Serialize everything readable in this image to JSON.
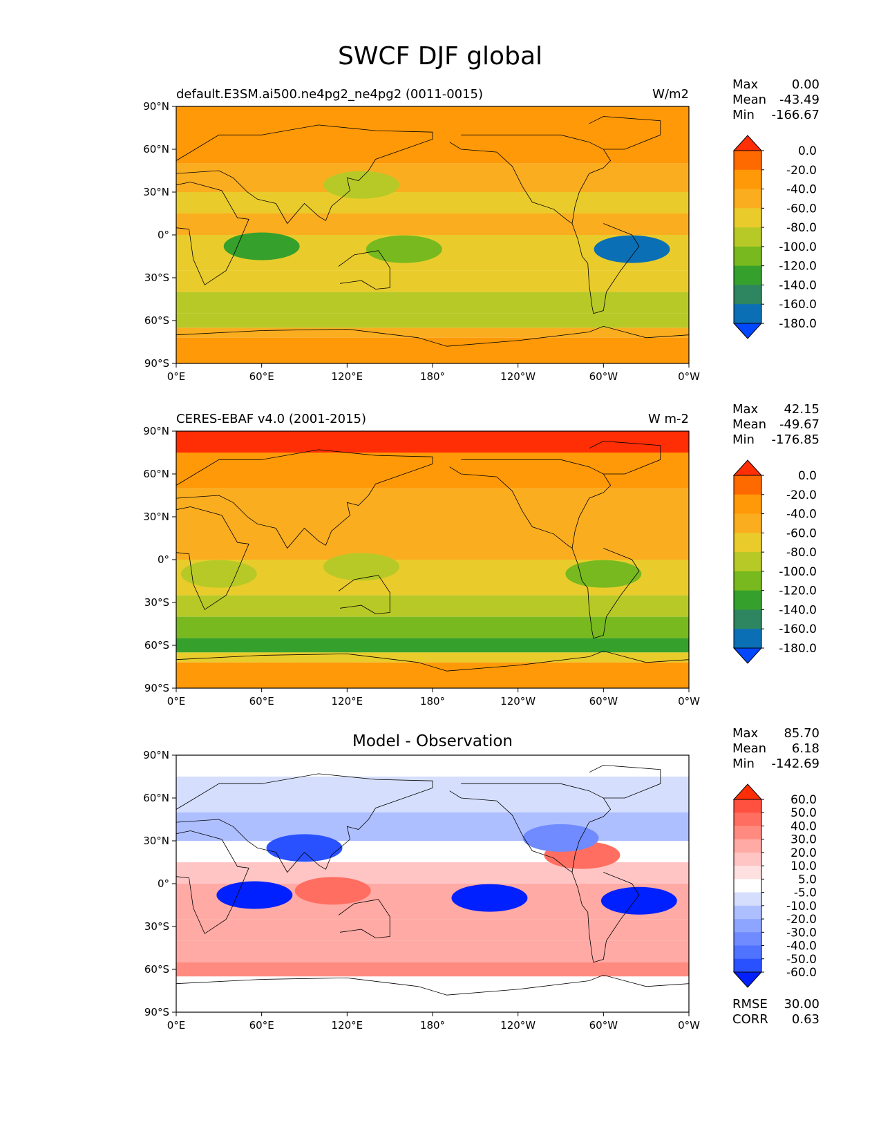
{
  "figure": {
    "title": "SWCF DJF global"
  },
  "colors": {
    "abs_levels": [
      "#0047ff",
      "#0a6fb5",
      "#2e8660",
      "#36a02c",
      "#77b91f",
      "#b7c926",
      "#e9cc2b",
      "#fbad20",
      "#ff9908",
      "#ff6a00",
      "#ff2e05"
    ],
    "diff_levels": [
      "#0020ff",
      "#2951ff",
      "#4f72ff",
      "#6f8bff",
      "#8ea5ff",
      "#aebfff",
      "#d5defc",
      "#ffffff",
      "#ffe0e0",
      "#ffc5c5",
      "#ffaaa5",
      "#ff8b80",
      "#ff6e60",
      "#ff5040",
      "#ff2e05"
    ],
    "land": "#000000"
  },
  "chart_data": [
    {
      "type": "heatmap",
      "panel": "model",
      "title": "default.E3SM.ai500.ne4pg2_ne4pg2 (0011-0015)",
      "units": "W/m2",
      "stats": [
        {
          "label": "Max",
          "value": "0.00"
        },
        {
          "label": "Mean",
          "value": "-43.49"
        },
        {
          "label": "Min",
          "value": "-166.67"
        }
      ],
      "colorbar": {
        "levels": [
          "0.0",
          "-20.0",
          "-40.0",
          "-60.0",
          "-80.0",
          "-100.0",
          "-120.0",
          "-140.0",
          "-160.0",
          "-180.0"
        ]
      },
      "x_ticks": [
        "0°E",
        "60°E",
        "120°E",
        "180°",
        "120°W",
        "60°W",
        "0°W"
      ],
      "y_ticks": [
        "90°N",
        "60°N",
        "30°N",
        "0°",
        "30°S",
        "60°S",
        "90°S"
      ],
      "xlim": [
        0,
        360
      ],
      "ylim": [
        -90,
        90
      ],
      "zones": [
        {
          "lat": [
            75,
            90
          ],
          "value": -30
        },
        {
          "lat": [
            50,
            75
          ],
          "value": -30
        },
        {
          "lat": [
            30,
            50
          ],
          "value": -45
        },
        {
          "lat": [
            15,
            30
          ],
          "value": -60
        },
        {
          "lat": [
            0,
            15
          ],
          "value": -45
        },
        {
          "lat": [
            -25,
            0
          ],
          "value": -65
        },
        {
          "lat": [
            -40,
            -25
          ],
          "value": -70
        },
        {
          "lat": [
            -55,
            -40
          ],
          "value": -95
        },
        {
          "lat": [
            -65,
            -55
          ],
          "value": -95
        },
        {
          "lat": [
            -72,
            -65
          ],
          "value": -55
        },
        {
          "lat": [
            -90,
            -72
          ],
          "value": -25
        }
      ],
      "features": [
        {
          "lon": 60,
          "lat": -8,
          "value": -130
        },
        {
          "lon": 160,
          "lat": -10,
          "value": -110
        },
        {
          "lon": 320,
          "lat": -10,
          "value": -160
        },
        {
          "lon": 130,
          "lat": 35,
          "value": -90
        }
      ]
    },
    {
      "type": "heatmap",
      "panel": "observation",
      "title": "CERES-EBAF v4.0 (2001-2015)",
      "units": "W m-2",
      "stats": [
        {
          "label": "Max",
          "value": "42.15"
        },
        {
          "label": "Mean",
          "value": "-49.67"
        },
        {
          "label": "Min",
          "value": "-176.85"
        }
      ],
      "colorbar": {
        "levels": [
          "0.0",
          "-20.0",
          "-40.0",
          "-60.0",
          "-80.0",
          "-100.0",
          "-120.0",
          "-140.0",
          "-160.0",
          "-180.0"
        ]
      },
      "x_ticks": [
        "0°E",
        "60°E",
        "120°E",
        "180°",
        "120°W",
        "60°W",
        "0°W"
      ],
      "y_ticks": [
        "90°N",
        "60°N",
        "30°N",
        "0°",
        "30°S",
        "60°S",
        "90°S"
      ],
      "xlim": [
        0,
        360
      ],
      "ylim": [
        -90,
        90
      ],
      "zones": [
        {
          "lat": [
            75,
            90
          ],
          "value": 5
        },
        {
          "lat": [
            50,
            75
          ],
          "value": -30
        },
        {
          "lat": [
            30,
            50
          ],
          "value": -45
        },
        {
          "lat": [
            15,
            30
          ],
          "value": -45
        },
        {
          "lat": [
            0,
            15
          ],
          "value": -55
        },
        {
          "lat": [
            -25,
            0
          ],
          "value": -70
        },
        {
          "lat": [
            -40,
            -25
          ],
          "value": -80
        },
        {
          "lat": [
            -55,
            -40
          ],
          "value": -115
        },
        {
          "lat": [
            -65,
            -55
          ],
          "value": -130
        },
        {
          "lat": [
            -72,
            -65
          ],
          "value": -70
        },
        {
          "lat": [
            -90,
            -72
          ],
          "value": -30
        }
      ],
      "features": [
        {
          "lon": 130,
          "lat": -5,
          "value": -95
        },
        {
          "lon": 300,
          "lat": -10,
          "value": -100
        },
        {
          "lon": 30,
          "lat": -10,
          "value": -90
        }
      ]
    },
    {
      "type": "heatmap",
      "panel": "difference",
      "title": "Model - Observation",
      "stats": [
        {
          "label": "Max",
          "value": "85.70"
        },
        {
          "label": "Mean",
          "value": "6.18"
        },
        {
          "label": "Min",
          "value": "-142.69"
        }
      ],
      "bottom_stats": [
        {
          "label": "RMSE",
          "value": "30.00"
        },
        {
          "label": "CORR",
          "value": "0.63"
        }
      ],
      "colorbar": {
        "levels": [
          "60.0",
          "50.0",
          "40.0",
          "30.0",
          "20.0",
          "10.0",
          "5.0",
          "-5.0",
          "-10.0",
          "-20.0",
          "-30.0",
          "-40.0",
          "-50.0",
          "-60.0"
        ]
      },
      "x_ticks": [
        "0°E",
        "60°E",
        "120°E",
        "180°",
        "120°W",
        "60°W",
        "0°W"
      ],
      "y_ticks": [
        "90°N",
        "60°N",
        "30°N",
        "0°",
        "30°S",
        "60°S",
        "90°S"
      ],
      "xlim": [
        0,
        360
      ],
      "ylim": [
        -90,
        90
      ],
      "zones": [
        {
          "lat": [
            75,
            90
          ],
          "value": 0
        },
        {
          "lat": [
            50,
            75
          ],
          "value": -5
        },
        {
          "lat": [
            30,
            50
          ],
          "value": -15
        },
        {
          "lat": [
            15,
            30
          ],
          "value": 5
        },
        {
          "lat": [
            0,
            15
          ],
          "value": 15
        },
        {
          "lat": [
            -25,
            0
          ],
          "value": 25
        },
        {
          "lat": [
            -40,
            -25
          ],
          "value": 25
        },
        {
          "lat": [
            -55,
            -40
          ],
          "value": 25
        },
        {
          "lat": [
            -65,
            -55
          ],
          "value": 40
        },
        {
          "lat": [
            -72,
            -65
          ],
          "value": 5
        },
        {
          "lat": [
            -90,
            -72
          ],
          "value": 0
        }
      ],
      "features": [
        {
          "lon": 55,
          "lat": -8,
          "value": -60
        },
        {
          "lon": 220,
          "lat": -10,
          "value": -60
        },
        {
          "lon": 325,
          "lat": -12,
          "value": -60
        },
        {
          "lon": 90,
          "lat": 25,
          "value": -50
        },
        {
          "lon": 285,
          "lat": 20,
          "value": 45
        },
        {
          "lon": 110,
          "lat": -5,
          "value": 50
        },
        {
          "lon": 270,
          "lat": 32,
          "value": -30
        }
      ]
    }
  ]
}
